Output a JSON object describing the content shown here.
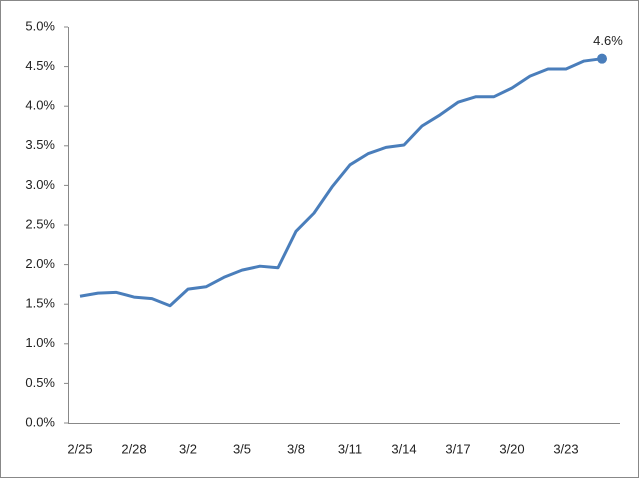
{
  "chart_data": {
    "type": "line",
    "categories": [
      "2/25",
      null,
      null,
      "2/28",
      null,
      null,
      "3/2",
      null,
      null,
      "3/5",
      null,
      null,
      "3/8",
      null,
      null,
      "3/11",
      null,
      null,
      "3/14",
      null,
      null,
      "3/17",
      null,
      null,
      "3/20",
      null,
      null,
      "3/23",
      null,
      null
    ],
    "series": [
      {
        "color": "#4a7ebb",
        "values": [
          1.6,
          1.64,
          1.65,
          1.59,
          1.57,
          1.48,
          1.69,
          1.72,
          1.84,
          1.93,
          1.98,
          1.96,
          2.42,
          2.65,
          2.98,
          3.26,
          3.4,
          3.48,
          3.51,
          3.75,
          3.89,
          4.05,
          4.12,
          4.12,
          4.23,
          4.38,
          4.47,
          4.47,
          4.57,
          4.6
        ],
        "value_labels": [
          null,
          null,
          null,
          null,
          null,
          null,
          null,
          null,
          null,
          null,
          null,
          null,
          null,
          null,
          null,
          null,
          null,
          null,
          null,
          null,
          null,
          null,
          null,
          null,
          null,
          null,
          null,
          null,
          null,
          "4.6%"
        ]
      }
    ],
    "ylim": [
      0,
      5
    ],
    "yticks": [
      {
        "value": 0,
        "label": "0.0%"
      },
      {
        "value": 0.5,
        "label": "0.5%"
      },
      {
        "value": 1,
        "label": "1.0%"
      },
      {
        "value": 1.5,
        "label": "1.5%"
      },
      {
        "value": 2,
        "label": "2.0%"
      },
      {
        "value": 2.5,
        "label": "2.5%"
      },
      {
        "value": 3,
        "label": "3.0%"
      },
      {
        "value": 3.5,
        "label": "3.5%"
      },
      {
        "value": 4,
        "label": "4.0%"
      },
      {
        "value": 4.5,
        "label": "4.5%"
      },
      {
        "value": 5,
        "label": "5.0%"
      }
    ],
    "grid": false
  }
}
